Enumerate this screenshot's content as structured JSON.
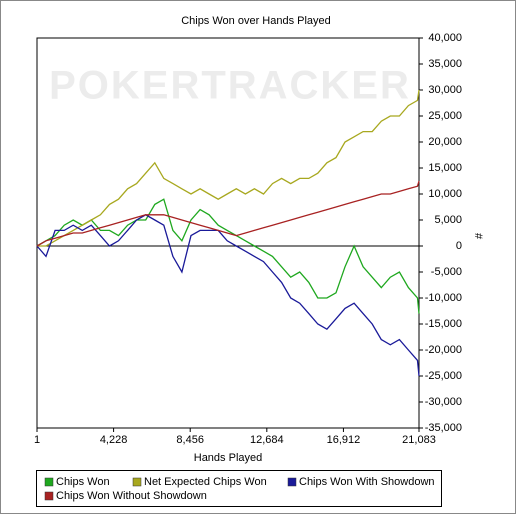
{
  "chart_data": {
    "type": "line",
    "title": "Chips Won over Hands Played",
    "watermark": "POKERTRACKER",
    "x_label": "Hands Played",
    "y_label": "#",
    "x": [
      1,
      500,
      1000,
      1500,
      2000,
      2500,
      3000,
      3500,
      4000,
      4500,
      5000,
      5500,
      6000,
      6500,
      7000,
      7500,
      8000,
      8500,
      9000,
      9500,
      10000,
      10500,
      11000,
      11500,
      12000,
      12500,
      13000,
      13500,
      14000,
      14500,
      15000,
      15500,
      16000,
      16500,
      17000,
      17500,
      18000,
      18500,
      19000,
      19500,
      20000,
      20500,
      21000,
      21083
    ],
    "series": [
      {
        "name": "Chips Won",
        "color": "#1fa81f",
        "values": [
          0,
          1000,
          2000,
          4000,
          5000,
          4000,
          5000,
          3000,
          3000,
          2000,
          4000,
          5000,
          5000,
          8000,
          9000,
          3000,
          1000,
          5000,
          7000,
          6000,
          4000,
          3000,
          2000,
          1000,
          0,
          -1000,
          -2000,
          -4000,
          -6000,
          -5000,
          -7000,
          -10000,
          -10000,
          -9000,
          -4000,
          0,
          -4000,
          -6000,
          -8000,
          -6000,
          -5000,
          -8000,
          -10000,
          -13000
        ]
      },
      {
        "name": "Net Expected Chips Won",
        "color": "#a8a81f",
        "values": [
          0,
          0,
          1000,
          2000,
          3000,
          4000,
          5000,
          6000,
          8000,
          9000,
          11000,
          12000,
          14000,
          16000,
          13000,
          12000,
          11000,
          10000,
          11000,
          10000,
          9000,
          10000,
          11000,
          10000,
          11000,
          10000,
          12000,
          13000,
          12000,
          13000,
          13000,
          14000,
          16000,
          17000,
          20000,
          21000,
          22000,
          22000,
          24000,
          25000,
          25000,
          27000,
          28000,
          30000
        ]
      },
      {
        "name": "Chips Won With Showdown",
        "color": "#1a1a99",
        "values": [
          0,
          -2000,
          3000,
          3000,
          4000,
          3000,
          4000,
          2000,
          0,
          1000,
          3000,
          5000,
          6000,
          5000,
          4000,
          -2000,
          -5000,
          2000,
          3000,
          3000,
          3000,
          1000,
          0,
          -1000,
          -2000,
          -3000,
          -5000,
          -7000,
          -10000,
          -11000,
          -13000,
          -15000,
          -16000,
          -14000,
          -12000,
          -11000,
          -13000,
          -15000,
          -18000,
          -19000,
          -18000,
          -20000,
          -22000,
          -25000
        ]
      },
      {
        "name": "Chips Won Without Showdown",
        "color": "#a82222",
        "values": [
          0,
          1000,
          1500,
          2000,
          2500,
          2500,
          3000,
          3500,
          4000,
          4500,
          5000,
          5500,
          6000,
          6000,
          6000,
          5500,
          5000,
          4500,
          4000,
          3500,
          3000,
          2500,
          2000,
          2500,
          3000,
          3500,
          4000,
          4500,
          5000,
          5500,
          6000,
          6500,
          7000,
          7500,
          8000,
          8500,
          9000,
          9500,
          10000,
          10000,
          10500,
          11000,
          11500,
          12500
        ]
      }
    ],
    "xlim": [
      1,
      21083
    ],
    "xticks": [
      1,
      {
        "value": 4228,
        "label": "4,228"
      },
      {
        "value": 8456,
        "label": "8,456"
      },
      {
        "value": 12684,
        "label": "12,684"
      },
      {
        "value": 16912,
        "label": "16,912"
      },
      {
        "value": 21083,
        "label": "21,083"
      }
    ],
    "ylim": [
      -35000,
      40000
    ],
    "yticks": [
      {
        "value": -35000,
        "label": "-35,000"
      },
      {
        "value": -30000,
        "label": "-30,000"
      },
      {
        "value": -25000,
        "label": "-25,000"
      },
      {
        "value": -20000,
        "label": "-20,000"
      },
      {
        "value": -15000,
        "label": "-15,000"
      },
      {
        "value": -10000,
        "label": "-10,000"
      },
      {
        "value": -5000,
        "label": "-5,000"
      },
      0,
      {
        "value": 5000,
        "label": "5,000"
      },
      {
        "value": 10000,
        "label": "10,000"
      },
      {
        "value": 15000,
        "label": "15,000"
      },
      {
        "value": 20000,
        "label": "20,000"
      },
      {
        "value": 25000,
        "label": "25,000"
      },
      {
        "value": 30000,
        "label": "30,000"
      },
      {
        "value": 35000,
        "label": "35,000"
      },
      {
        "value": 40000,
        "label": "40,000"
      }
    ],
    "grid": false
  }
}
